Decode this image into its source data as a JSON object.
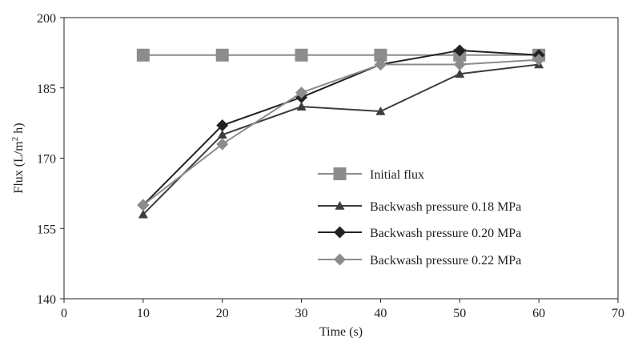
{
  "chart_data": {
    "type": "line",
    "title": "",
    "xlabel": "Time (s)",
    "ylabel": "Flux (L/m² h)",
    "ylabel_parts": {
      "before": "Flux (L/m",
      "sup": "2",
      "after": " h)"
    },
    "xlim": [
      0,
      70
    ],
    "ylim": [
      140,
      200
    ],
    "xticks": [
      0,
      10,
      20,
      30,
      40,
      50,
      60,
      70
    ],
    "yticks": [
      140,
      155,
      170,
      185,
      200
    ],
    "grid": false,
    "legend_position": "center-right",
    "x": [
      10,
      20,
      30,
      40,
      50,
      60
    ],
    "series": [
      {
        "name": "Initial flux",
        "values": [
          192,
          192,
          192,
          192,
          192,
          192
        ],
        "marker": "square",
        "color": "#8c8c8c"
      },
      {
        "name": "Backwash pressure 0.18 MPa",
        "values": [
          158,
          175,
          181,
          180,
          188,
          190
        ],
        "marker": "triangle",
        "color": "#3d3d3d"
      },
      {
        "name": "Backwash pressure 0.20 MPa",
        "values": [
          160,
          177,
          183,
          190,
          193,
          192
        ],
        "marker": "diamond",
        "color": "#222222"
      },
      {
        "name": "Backwash pressure 0.22 MPa",
        "values": [
          160,
          173,
          184,
          190,
          190,
          191
        ],
        "marker": "diamond",
        "color": "#8c8c8c"
      }
    ]
  }
}
